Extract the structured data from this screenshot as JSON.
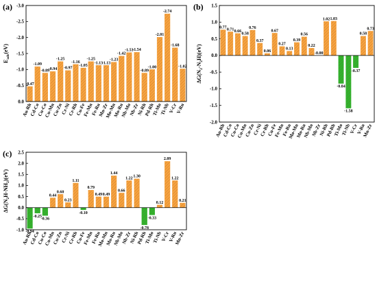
{
  "chart_data": [
    {
      "type": "bar",
      "panel_label": "(a)",
      "y_label_parts": [
        "E",
        "ads",
        "(eV)"
      ],
      "categories": [
        "Au-Rh",
        "Cd-Co",
        "Cu-Co",
        "Cu-Mn",
        "Cu-Zn",
        "Cr-Ni",
        "Cr-Rh",
        "Cu-Fe",
        "Fe-Mn",
        "Fe-Ru",
        "Mn-Zr",
        "Mo-Mn",
        "Mo-Ru",
        "Nb-Mo",
        "Nb-Zr",
        "Ni-Rh",
        "Pd-Rh",
        "Ti-Mo",
        "Ti-Nb",
        "V-Cr",
        "V-Ru"
      ],
      "values": [
        -0.47,
        -1.09,
        -0.89,
        -0.94,
        -1.25,
        -0.97,
        -1.16,
        -1.05,
        -1.25,
        -1.13,
        -1.13,
        -1.23,
        -1.42,
        -1.53,
        -1.54,
        -0.89,
        -1.0,
        -2.01,
        -2.74,
        -1.68,
        -1.02
      ],
      "value_labels": [
        "-0.47",
        "-1.09",
        "-0.89",
        "-0.94",
        "-1.25",
        "-0.97",
        "-1.16",
        "-1.05",
        "-1.25",
        "-1.13",
        "-1.13",
        "-1.23",
        "-1.42",
        "-1.53",
        "-1.54",
        "-0.89",
        "-1.00",
        "-2.01",
        "-2.74",
        "-1.68",
        "-1.02"
      ],
      "color": "#f6a340",
      "ylim": [
        0,
        -3.0
      ],
      "yticks": [
        {
          "value": 0,
          "label": "0.0"
        },
        -0.5,
        {
          "value": -1.0,
          "label": "-1.0"
        },
        -1.5,
        {
          "value": -2.0,
          "label": "-2.0"
        },
        -2.5,
        {
          "value": -3.0,
          "label": "-3.0"
        }
      ]
    },
    {
      "type": "bar",
      "panel_label": "(b)",
      "y_label_parts": [
        "ΔG(N",
        "2",
        "-N",
        "2",
        "H)(eV)"
      ],
      "categories": [
        "Au-Rh",
        "Cd-Co",
        "Cu-Co",
        "Cu-Mn",
        "Cu-Zn",
        "Cr-Ni",
        "Cr-Rh",
        "Cu-Fe",
        "Fe-Mn",
        "Fe-Ru",
        "Mo-Mn",
        "Mo-Ru",
        "Nb-Mo",
        "Nb-Zr",
        "Ni-Rh",
        "Pd-Rh",
        "Ti-Mo",
        "Ti-Nb",
        "V-Cr",
        "V-Ru",
        "Mn-Zr"
      ],
      "values": [
        0.77,
        0.71,
        0.66,
        0.58,
        0.76,
        0.37,
        0.06,
        0.67,
        0.27,
        0.13,
        0.39,
        0.56,
        0.22,
        0,
        1.02,
        1.03,
        -0.84,
        -1.58,
        -0.37,
        0.58,
        0.73
      ],
      "value_labels": [
        "0.77",
        "0.71",
        "0.66",
        "0.58",
        "0.76",
        "0.37",
        "0.06",
        "0.67",
        "0.27",
        "0.13",
        "0.39",
        "0.56",
        "0.22",
        "-0.00",
        "1.02",
        "1.03",
        "-0.84",
        "-1.58",
        "-0.37",
        "0.58",
        "0.73"
      ],
      "color": "#f6a340",
      "negative_color": "#2fb52f",
      "ylim": [
        -2.0,
        1.5
      ],
      "yticks": [
        {
          "value": -2.0,
          "label": "-2.0"
        },
        -1.5,
        {
          "value": -1.0,
          "label": "-1.0"
        },
        -0.5,
        {
          "value": 0,
          "label": "0.0"
        },
        0.5,
        {
          "value": 1.0,
          "label": "1.0"
        },
        1.5
      ]
    },
    {
      "type": "bar",
      "panel_label": "(c)",
      "y_label_parts": [
        "ΔG(N",
        "2",
        "H-NH",
        "2",
        ")(eV)"
      ],
      "categories": [
        "Au-Rh",
        "Cd-Co",
        "Cu-Co",
        "Cu-Mn",
        "Cu-Zn",
        "Cr-Ni",
        "Cr-Rh",
        "Cu-Fe",
        "Fe-Mn",
        "Fe-Ru",
        "Mo-Mn",
        "Mo-Ru",
        "Nb-Mo",
        "Nb-Zr",
        "Ni-Rh",
        "Pd-Rh",
        "Ti-Mo",
        "Ti-Nb",
        "V-Cr",
        "V-Ru",
        "Mn-Zr"
      ],
      "values": [
        -0.94,
        -0.25,
        -0.36,
        0.44,
        0.6,
        0.23,
        1.11,
        -0.1,
        0.79,
        0.49,
        0.49,
        1.44,
        0.66,
        1.22,
        1.3,
        -0.78,
        -0.33,
        0.12,
        2.09,
        1.22,
        0.21
      ],
      "value_labels": [
        "-0.94",
        "-0.25",
        "-0.36",
        "0.44",
        "0.60",
        "0.23",
        "1.11",
        "-0.10",
        "0.79",
        "0.49",
        "0.49",
        "1.44",
        "0.66",
        "1.22",
        "1.30",
        "-0.78",
        "-0.33",
        "0.12",
        "2.09",
        "1.22",
        "0.21"
      ],
      "color": "#f6a340",
      "negative_color": "#2fb52f",
      "ylim": [
        -1.0,
        2.5
      ],
      "yticks": [
        {
          "value": -1.0,
          "label": "-1.0"
        },
        -0.5,
        {
          "value": 0,
          "label": "0.0"
        },
        0.5,
        {
          "value": 1.0,
          "label": "1.0"
        },
        1.5,
        {
          "value": 2.0,
          "label": "2.0"
        },
        2.5
      ]
    }
  ]
}
